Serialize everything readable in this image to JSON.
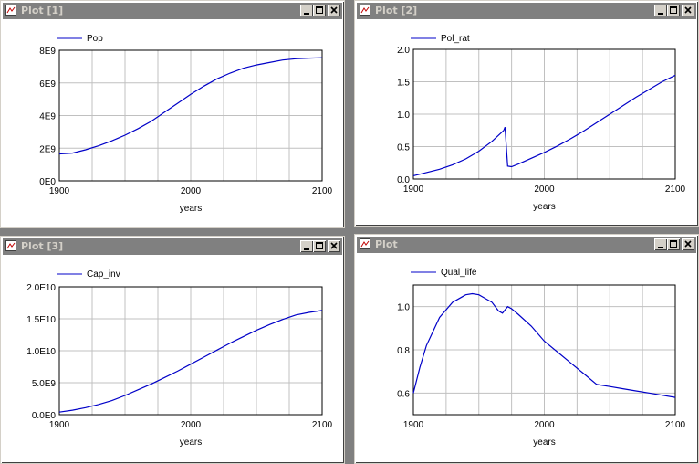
{
  "windows": [
    {
      "title": "Plot [1]"
    },
    {
      "title": "Plot [2]"
    },
    {
      "title": "Plot [3]"
    },
    {
      "title": "Plot"
    }
  ],
  "colors": {
    "series": "#0000c8",
    "grid": "#c0c0c0",
    "titlebar": "#808080"
  },
  "chart_data": [
    {
      "type": "line",
      "xlabel": "years",
      "ylabel": "",
      "xlim": [
        1900,
        2100
      ],
      "ylim": [
        0,
        8000000000
      ],
      "xticks": [
        "1900",
        "2000",
        "2100"
      ],
      "yticks": [
        "0E0",
        "2E9",
        "4E9",
        "6E9",
        "8E9"
      ],
      "series": [
        {
          "name": "Pop",
          "x": [
            1900,
            1910,
            1920,
            1930,
            1940,
            1950,
            1960,
            1970,
            1980,
            1990,
            2000,
            2010,
            2020,
            2030,
            2040,
            2050,
            2060,
            2070,
            2080,
            2090,
            2100
          ],
          "y": [
            1650000000,
            1700000000,
            1900000000,
            2150000000,
            2450000000,
            2800000000,
            3200000000,
            3650000000,
            4200000000,
            4750000000,
            5300000000,
            5800000000,
            6250000000,
            6600000000,
            6900000000,
            7100000000,
            7250000000,
            7400000000,
            7480000000,
            7520000000,
            7540000000
          ]
        }
      ]
    },
    {
      "type": "line",
      "xlabel": "years",
      "ylabel": "",
      "xlim": [
        1900,
        2100
      ],
      "ylim": [
        0,
        2.0
      ],
      "xticks": [
        "1900",
        "2000",
        "2100"
      ],
      "yticks": [
        "0.0",
        "0.5",
        "1.0",
        "1.5",
        "2.0"
      ],
      "series": [
        {
          "name": "Pol_rat",
          "x": [
            1900,
            1910,
            1920,
            1930,
            1940,
            1950,
            1960,
            1969,
            1970,
            1972,
            1975,
            1980,
            1990,
            2000,
            2010,
            2020,
            2030,
            2040,
            2050,
            2060,
            2070,
            2080,
            2090,
            2100
          ],
          "y": [
            0.05,
            0.1,
            0.15,
            0.22,
            0.31,
            0.43,
            0.58,
            0.75,
            0.8,
            0.2,
            0.19,
            0.23,
            0.32,
            0.41,
            0.51,
            0.62,
            0.74,
            0.87,
            1.0,
            1.13,
            1.26,
            1.38,
            1.5,
            1.6
          ]
        }
      ]
    },
    {
      "type": "line",
      "xlabel": "years",
      "ylabel": "",
      "xlim": [
        1900,
        2100
      ],
      "ylim": [
        0,
        20000000000
      ],
      "xticks": [
        "1900",
        "2000",
        "2100"
      ],
      "yticks": [
        "0.0E0",
        "5.0E9",
        "1.0E10",
        "1.5E10",
        "2.0E10"
      ],
      "series": [
        {
          "name": "Cap_inv",
          "x": [
            1900,
            1910,
            1920,
            1930,
            1940,
            1950,
            1960,
            1970,
            1980,
            1990,
            2000,
            2010,
            2020,
            2030,
            2040,
            2050,
            2060,
            2070,
            2080,
            2090,
            2100
          ],
          "y": [
            400000000,
            700000000,
            1100000000,
            1600000000,
            2200000000,
            3000000000,
            3900000000,
            4800000000,
            5800000000,
            6800000000,
            7900000000,
            9000000000,
            10100000000,
            11200000000,
            12200000000,
            13200000000,
            14100000000,
            14900000000,
            15600000000,
            16000000000,
            16300000000
          ]
        }
      ]
    },
    {
      "type": "line",
      "xlabel": "years",
      "ylabel": "",
      "xlim": [
        1900,
        2100
      ],
      "ylim": [
        0.5,
        1.1
      ],
      "xticks": [
        "1900",
        "2000",
        "2100"
      ],
      "yticks": [
        "0.6",
        "0.8",
        "1.0"
      ],
      "series": [
        {
          "name": "Qual_life",
          "x": [
            1900,
            1905,
            1910,
            1920,
            1930,
            1940,
            1945,
            1950,
            1960,
            1965,
            1968,
            1972,
            1975,
            1980,
            1990,
            2000,
            2010,
            2020,
            2030,
            2040,
            2050,
            2060,
            2070,
            2080,
            2090,
            2100
          ],
          "y": [
            0.6,
            0.72,
            0.82,
            0.95,
            1.02,
            1.055,
            1.06,
            1.055,
            1.02,
            0.98,
            0.97,
            1.0,
            0.99,
            0.965,
            0.91,
            0.84,
            0.79,
            0.74,
            0.69,
            0.64,
            0.63,
            0.62,
            0.61,
            0.6,
            0.59,
            0.58
          ]
        }
      ]
    }
  ]
}
